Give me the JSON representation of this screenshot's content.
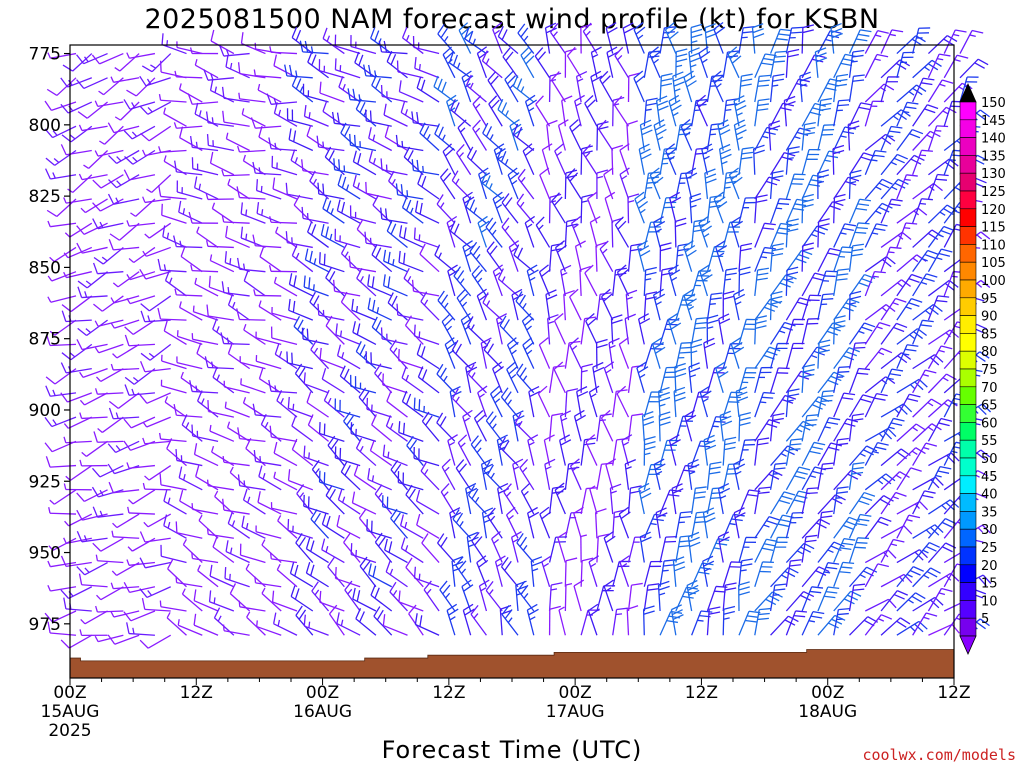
{
  "chart_data": {
    "type": "wind_barb_time_height",
    "title": "2025081500 NAM forecast wind profile (kt) for KSBN",
    "xlabel": "Forecast Time (UTC)",
    "ylabel": "",
    "x_ticks": [
      {
        "label": "00Z",
        "sublabel": "15AUG",
        "year": "2025",
        "hour": 0
      },
      {
        "label": "12Z",
        "sublabel": "",
        "year": "",
        "hour": 12
      },
      {
        "label": "00Z",
        "sublabel": "16AUG",
        "year": "",
        "hour": 24
      },
      {
        "label": "12Z",
        "sublabel": "",
        "year": "",
        "hour": 36
      },
      {
        "label": "00Z",
        "sublabel": "17AUG",
        "year": "",
        "hour": 48
      },
      {
        "label": "12Z",
        "sublabel": "",
        "year": "",
        "hour": 60
      },
      {
        "label": "00Z",
        "sublabel": "18AUG",
        "year": "",
        "hour": 72
      },
      {
        "label": "12Z",
        "sublabel": "",
        "year": "",
        "hour": 84
      }
    ],
    "y_ticks": [
      "775",
      "800",
      "825",
      "850",
      "875",
      "900",
      "925",
      "950",
      "975"
    ],
    "y_tick_values": [
      775,
      800,
      825,
      850,
      875,
      900,
      925,
      950,
      975
    ],
    "xlim": [
      0,
      84
    ],
    "ylim": [
      772,
      994
    ],
    "grid": false,
    "colorbar": {
      "units": "kt",
      "labels": [
        "150",
        "145",
        "140",
        "135",
        "130",
        "125",
        "120",
        "115",
        "110",
        "105",
        "100",
        "95",
        "90",
        "85",
        "80",
        "75",
        "70",
        "65",
        "60",
        "55",
        "50",
        "45",
        "40",
        "35",
        "30",
        "25",
        "20",
        "15",
        "10",
        "5"
      ],
      "colors": [
        "#ff00ff",
        "#f400e6",
        "#ec00c0",
        "#e8009a",
        "#e60070",
        "#ff0040",
        "#ff0000",
        "#ff3300",
        "#ff6600",
        "#ff8800",
        "#ffaa00",
        "#ffcc00",
        "#ffee00",
        "#ffff00",
        "#ddff00",
        "#aaff00",
        "#66ff00",
        "#33ff33",
        "#00ff66",
        "#00ffaa",
        "#00ffcc",
        "#00eeff",
        "#00bbff",
        "#0099ff",
        "#0066ff",
        "#0033ff",
        "#0000ff",
        "#3300ff",
        "#5500ff",
        "#7700ee"
      ],
      "top_arrow_color": "#000000",
      "bottom_arrow_color": "#8800ff"
    },
    "terrain": {
      "color": "#a0522d",
      "surface_hpa": [
        987,
        988,
        988,
        988,
        988,
        988,
        988,
        988,
        988,
        988,
        988,
        988,
        988,
        988,
        988,
        988,
        988,
        988,
        988,
        988,
        988,
        988,
        988,
        988,
        988,
        988,
        988,
        988,
        987,
        987,
        987,
        987,
        987,
        987,
        986,
        986,
        986,
        986,
        986,
        986,
        986,
        986,
        986,
        986,
        986,
        986,
        985,
        985,
        985,
        985,
        985,
        985,
        985,
        985,
        985,
        985,
        985,
        985,
        985,
        985,
        985,
        985,
        985,
        985,
        985,
        985,
        985,
        985,
        985,
        985,
        984,
        984,
        984,
        984,
        984,
        984,
        984,
        984,
        984,
        984,
        984,
        984,
        984,
        984,
        985
      ]
    },
    "wind_regimes": [
      {
        "hours": [
          0,
          10
        ],
        "direction_deg": 250,
        "speed_kt": 9
      },
      {
        "hours": [
          10,
          22
        ],
        "direction_deg": 290,
        "speed_kt": 10
      },
      {
        "hours": [
          22,
          36
        ],
        "direction_deg": 300,
        "speed_kt": 18
      },
      {
        "hours": [
          36,
          44
        ],
        "direction_deg": 330,
        "speed_kt": 22
      },
      {
        "hours": [
          44,
          54
        ],
        "direction_deg": 350,
        "speed_kt": 15
      },
      {
        "hours": [
          54,
          64
        ],
        "direction_deg": 0,
        "speed_kt": 28
      },
      {
        "hours": [
          64,
          74
        ],
        "direction_deg": 20,
        "speed_kt": 26
      },
      {
        "hours": [
          74,
          84
        ],
        "direction_deg": 40,
        "speed_kt": 20
      }
    ]
  },
  "credit": "coolwx.com/models"
}
